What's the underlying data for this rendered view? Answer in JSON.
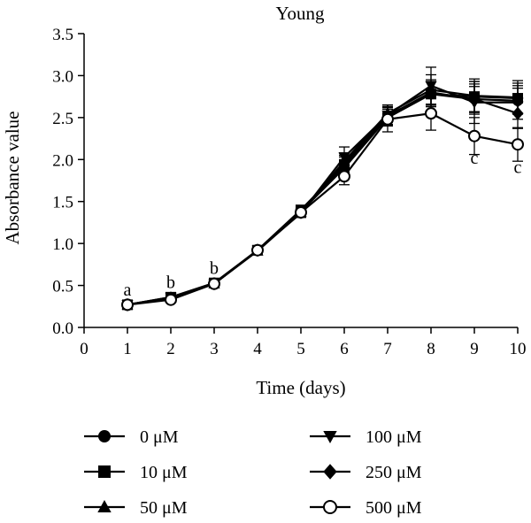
{
  "chart_data": {
    "type": "line",
    "title": "Young",
    "xlabel": "Time (days)",
    "ylabel": "Absorbance value",
    "xlim": [
      0,
      10
    ],
    "ylim": [
      0.0,
      3.5
    ],
    "x_ticks": [
      "0",
      "1",
      "2",
      "3",
      "4",
      "5",
      "6",
      "7",
      "8",
      "9",
      "10"
    ],
    "y_ticks": [
      "0.0",
      "0.5",
      "1.0",
      "1.5",
      "2.0",
      "2.5",
      "3.0",
      "3.5"
    ],
    "grid": false,
    "legend_position": "bottom",
    "x": [
      1,
      2,
      3,
      4,
      5,
      6,
      7,
      8,
      9,
      10
    ],
    "series": [
      {
        "name": "0 μM",
        "marker": "circle-filled",
        "values": [
          0.27,
          0.35,
          0.52,
          0.92,
          1.38,
          1.95,
          2.52,
          2.8,
          2.72,
          2.7
        ],
        "error": [
          0.02,
          0.03,
          0.03,
          0.04,
          0.05,
          0.1,
          0.1,
          0.15,
          0.15,
          0.15
        ]
      },
      {
        "name": "10 μM",
        "marker": "square-filled",
        "values": [
          0.27,
          0.36,
          0.53,
          0.92,
          1.4,
          1.93,
          2.5,
          2.78,
          2.75,
          2.73
        ],
        "error": [
          0.02,
          0.03,
          0.03,
          0.04,
          0.05,
          0.1,
          0.1,
          0.15,
          0.18,
          0.18
        ]
      },
      {
        "name": "50 μM",
        "marker": "triangle-up-filled",
        "values": [
          0.27,
          0.35,
          0.52,
          0.91,
          1.37,
          1.98,
          2.55,
          2.83,
          2.76,
          2.74
        ],
        "error": [
          0.02,
          0.03,
          0.03,
          0.04,
          0.05,
          0.1,
          0.1,
          0.18,
          0.2,
          0.2
        ]
      },
      {
        "name": "100 μM",
        "marker": "triangle-down-filled",
        "values": [
          0.27,
          0.36,
          0.52,
          0.92,
          1.36,
          2.03,
          2.53,
          2.88,
          2.68,
          2.68
        ],
        "error": [
          0.02,
          0.03,
          0.03,
          0.04,
          0.05,
          0.12,
          0.12,
          0.22,
          0.25,
          0.2
        ]
      },
      {
        "name": "250 μM",
        "marker": "diamond-filled",
        "values": [
          0.27,
          0.35,
          0.52,
          0.92,
          1.38,
          1.9,
          2.5,
          2.78,
          2.72,
          2.55
        ],
        "error": [
          0.02,
          0.03,
          0.03,
          0.04,
          0.05,
          0.1,
          0.1,
          0.15,
          0.18,
          0.18
        ]
      },
      {
        "name": "500 μM",
        "marker": "circle-open",
        "values": [
          0.27,
          0.33,
          0.52,
          0.92,
          1.37,
          1.8,
          2.48,
          2.55,
          2.28,
          2.18
        ],
        "error": [
          0.02,
          0.03,
          0.03,
          0.04,
          0.05,
          0.1,
          0.15,
          0.2,
          0.22,
          0.2
        ]
      }
    ],
    "annotations": [
      {
        "text": "a",
        "x": 1,
        "y": 0.38
      },
      {
        "text": "b",
        "x": 2,
        "y": 0.47
      },
      {
        "text": "b",
        "x": 3,
        "y": 0.64
      },
      {
        "text": "c",
        "x": 9,
        "y": 1.95
      },
      {
        "text": "c",
        "x": 10,
        "y": 1.84
      }
    ]
  }
}
